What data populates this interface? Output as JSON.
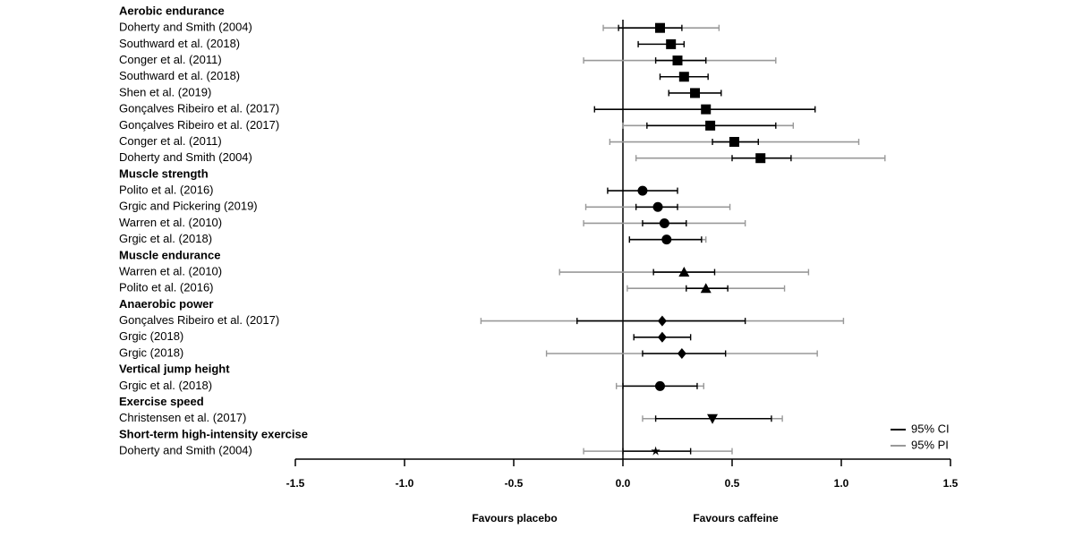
{
  "chart_data": {
    "type": "forest",
    "xlim": [
      -1.5,
      1.5
    ],
    "xticks": [
      -1.5,
      {
        "value": -1,
        "label": "-1.0"
      },
      -0.5,
      {
        "value": 0,
        "label": "0.0"
      },
      0.5,
      {
        "value": 1,
        "label": "1.0"
      },
      1.5
    ],
    "annotations": [
      "Favours placebo",
      "Favours caffeine"
    ],
    "series": [
      {
        "name": "95% CI",
        "color": "#000000"
      },
      {
        "name": "95% PI",
        "color": "#999999"
      }
    ],
    "legend": "bottom-right",
    "groups": [
      {
        "name": "Aerobic endurance",
        "marker": "square",
        "studies": [
          {
            "label": "Doherty and Smith (2004)",
            "estimate": 0.17,
            "ci": [
              -0.02,
              0.27
            ],
            "pi": [
              -0.09,
              0.44
            ]
          },
          {
            "label": "Southward et al. (2018)",
            "estimate": 0.22,
            "ci": [
              0.07,
              0.28
            ],
            "pi": null
          },
          {
            "label": "Conger et al. (2011)",
            "estimate": 0.25,
            "ci": [
              0.15,
              0.38
            ],
            "pi": [
              -0.18,
              0.7
            ]
          },
          {
            "label": "Southward et al. (2018)",
            "estimate": 0.28,
            "ci": [
              0.17,
              0.39
            ],
            "pi": null
          },
          {
            "label": "Shen et al. (2019)",
            "estimate": 0.33,
            "ci": [
              0.21,
              0.45
            ],
            "pi": null
          },
          {
            "label": "Gonçalves Ribeiro et al. (2017)",
            "estimate": 0.38,
            "ci": [
              -0.13,
              0.88
            ],
            "pi": null
          },
          {
            "label": "Gonçalves Ribeiro et al. (2017)",
            "estimate": 0.4,
            "ci": [
              0.11,
              0.7
            ],
            "pi": [
              0.0,
              0.78
            ]
          },
          {
            "label": "Conger et al. (2011)",
            "estimate": 0.51,
            "ci": [
              0.41,
              0.62
            ],
            "pi": [
              -0.06,
              1.08
            ]
          },
          {
            "label": "Doherty and Smith (2004)",
            "estimate": 0.63,
            "ci": [
              0.5,
              0.77
            ],
            "pi": [
              0.06,
              1.2
            ]
          }
        ]
      },
      {
        "name": "Muscle strength",
        "marker": "circle",
        "studies": [
          {
            "label": "Polito et al. (2016)",
            "estimate": 0.09,
            "ci": [
              -0.07,
              0.25
            ],
            "pi": null
          },
          {
            "label": "Grgic and Pickering (2019)",
            "estimate": 0.16,
            "ci": [
              0.06,
              0.25
            ],
            "pi": [
              -0.17,
              0.49
            ]
          },
          {
            "label": "Warren et al. (2010)",
            "estimate": 0.19,
            "ci": [
              0.09,
              0.29
            ],
            "pi": [
              -0.18,
              0.56
            ]
          },
          {
            "label": "Grgic et al. (2018)",
            "estimate": 0.2,
            "ci": [
              0.03,
              0.36
            ],
            "pi": [
              0.03,
              0.38
            ]
          }
        ]
      },
      {
        "name": "Muscle endurance",
        "marker": "triangle",
        "studies": [
          {
            "label": "Warren et al. (2010)",
            "estimate": 0.28,
            "ci": [
              0.14,
              0.42
            ],
            "pi": [
              -0.29,
              0.85
            ]
          },
          {
            "label": "Polito et al. (2016)",
            "estimate": 0.38,
            "ci": [
              0.29,
              0.48
            ],
            "pi": [
              0.02,
              0.74
            ]
          }
        ]
      },
      {
        "name": "Anaerobic power",
        "marker": "diamond",
        "studies": [
          {
            "label": "Gonçalves Ribeiro et al. (2017)",
            "estimate": 0.18,
            "ci": [
              -0.21,
              0.56
            ],
            "pi": [
              -0.65,
              1.01
            ]
          },
          {
            "label": "Grgic (2018)",
            "estimate": 0.18,
            "ci": [
              0.05,
              0.31
            ],
            "pi": null
          },
          {
            "label": "Grgic (2018)",
            "estimate": 0.27,
            "ci": [
              0.09,
              0.47
            ],
            "pi": [
              -0.35,
              0.89
            ]
          }
        ]
      },
      {
        "name": "Vertical jump height",
        "marker": "circle",
        "studies": [
          {
            "label": "Grgic et al. (2018)",
            "estimate": 0.17,
            "ci": [
              0.0,
              0.34
            ],
            "pi": [
              -0.03,
              0.37
            ]
          }
        ]
      },
      {
        "name": "Exercise speed",
        "marker": "triangle-down",
        "studies": [
          {
            "label": "Christensen et al. (2017)",
            "estimate": 0.41,
            "ci": [
              0.15,
              0.68
            ],
            "pi": [
              0.09,
              0.73
            ]
          }
        ]
      },
      {
        "name": "Short-term high-intensity exercise",
        "marker": "star",
        "studies": [
          {
            "label": "Doherty and Smith (2004)",
            "estimate": 0.15,
            "ci": [
              0.0,
              0.31
            ],
            "pi": [
              -0.18,
              0.5
            ]
          }
        ]
      }
    ]
  }
}
